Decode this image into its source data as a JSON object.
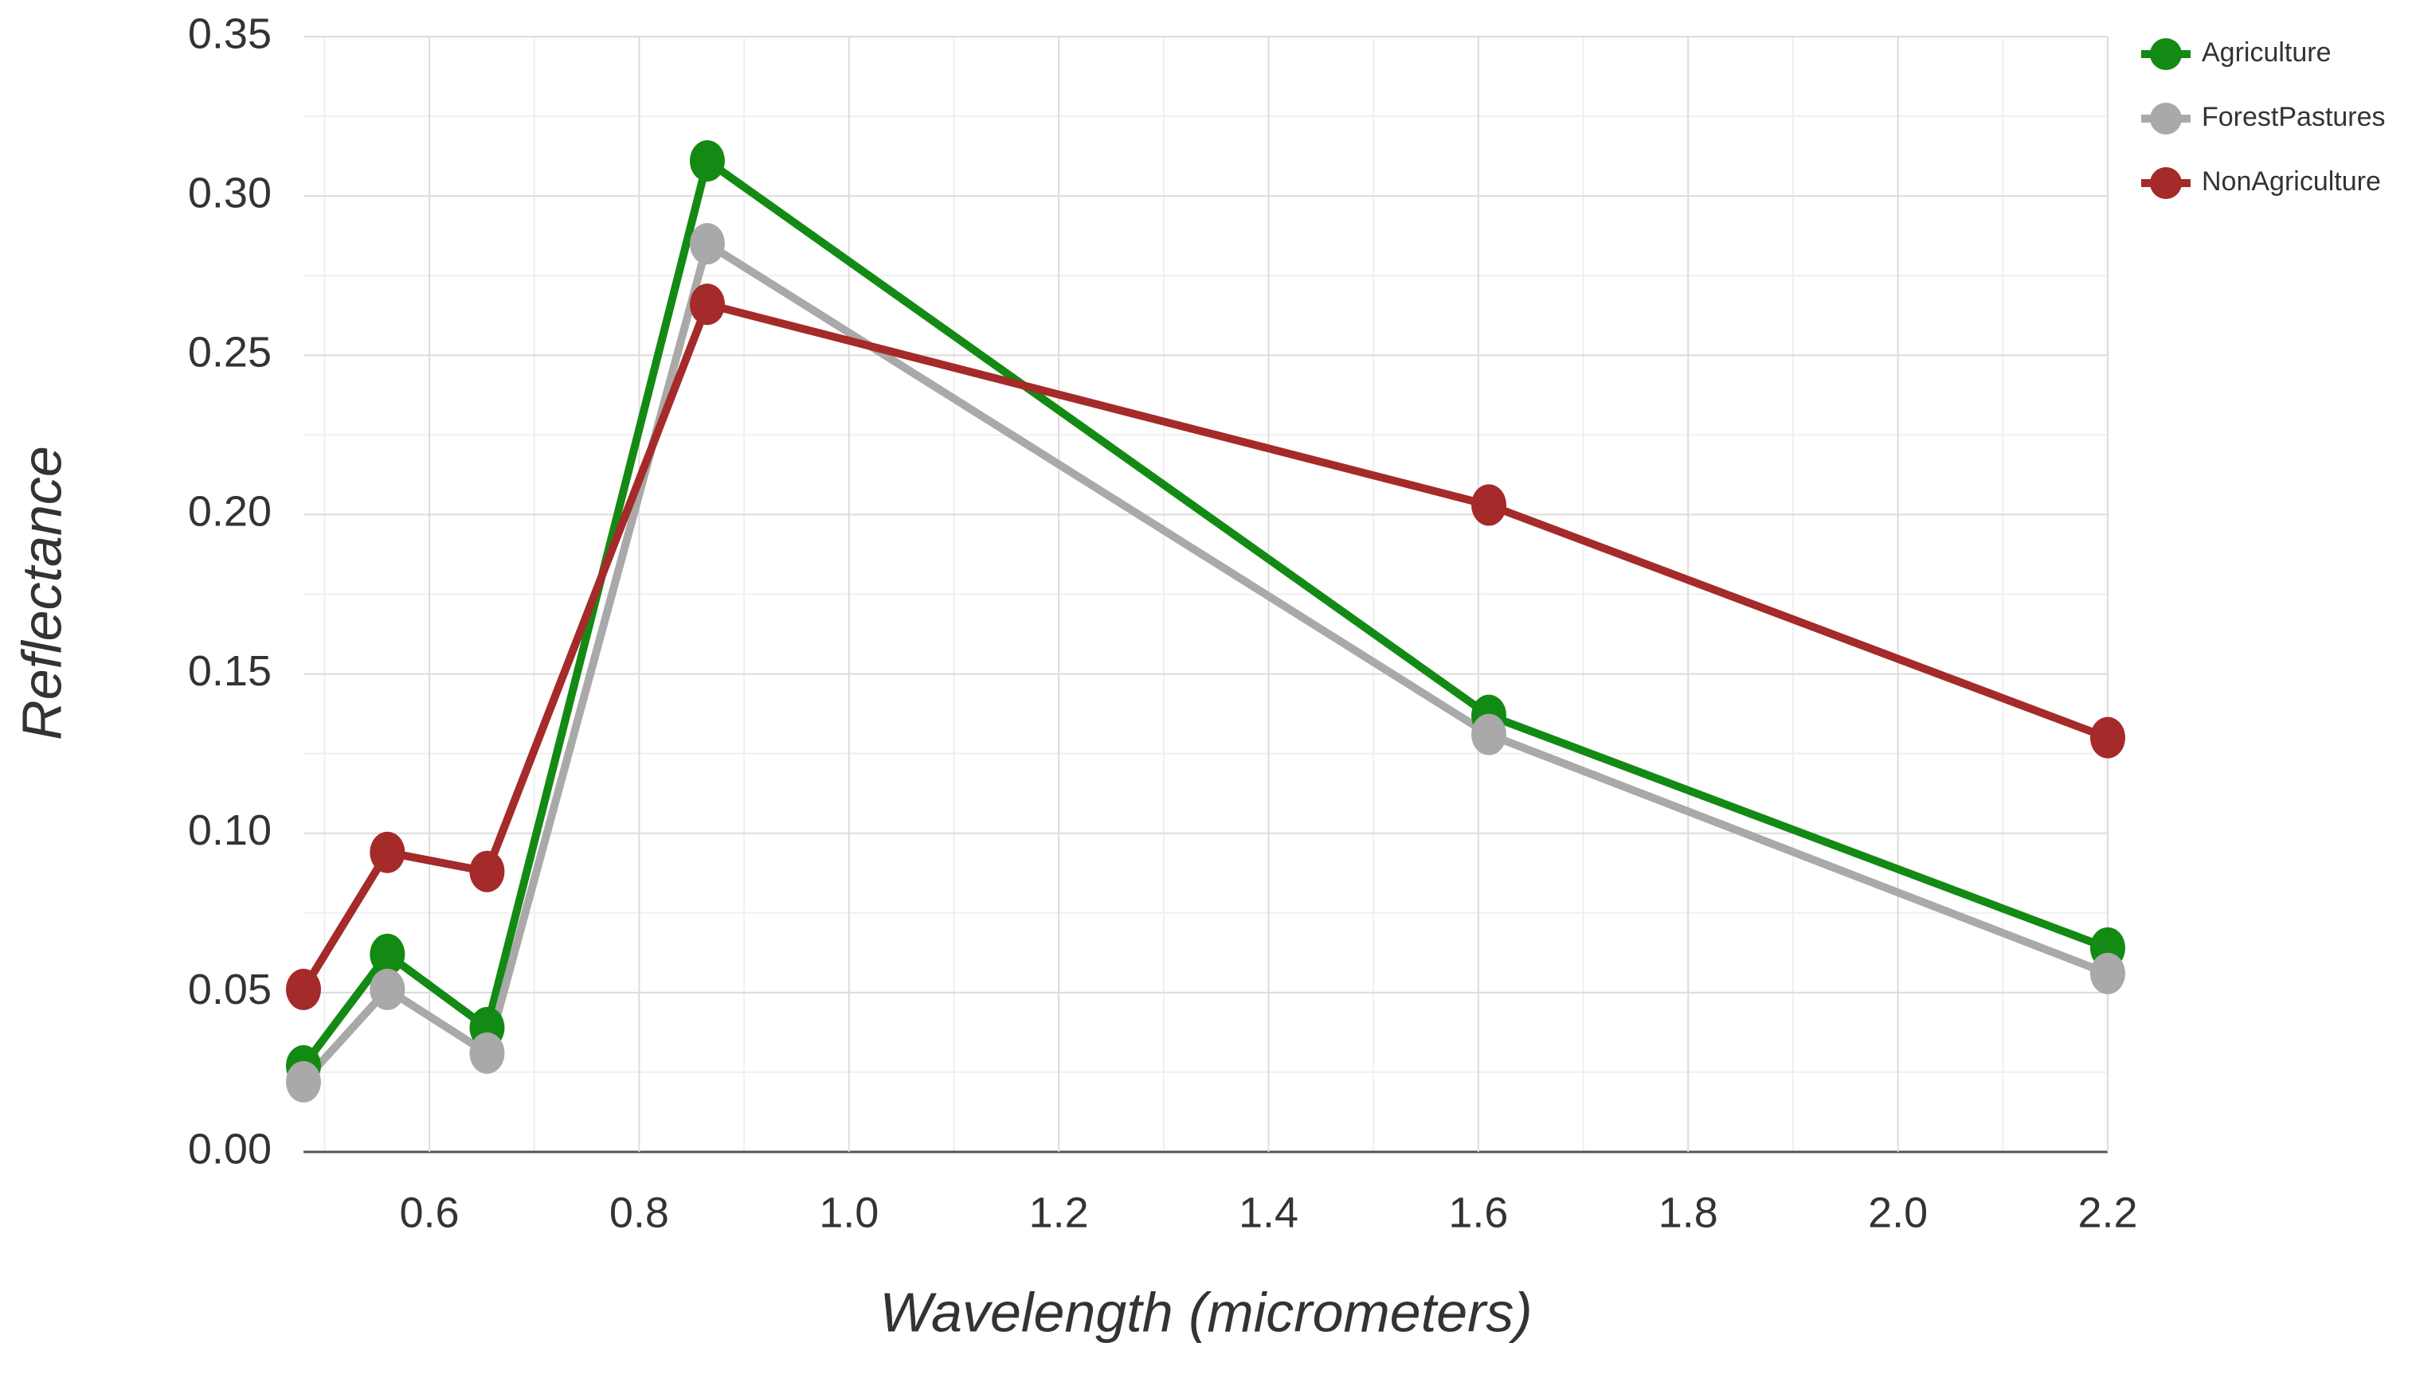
{
  "chart_data": {
    "type": "line",
    "x_label": "Wavelength (micrometers)",
    "y_label": "Reflectance",
    "x": [
      0.48,
      0.56,
      0.655,
      0.865,
      1.61,
      2.2
    ],
    "series": [
      {
        "name": "Agriculture",
        "color": "#138a13",
        "values": [
          0.027,
          0.062,
          0.039,
          0.311,
          0.137,
          0.064
        ]
      },
      {
        "name": "ForestPastures",
        "color": "#a9a9a9",
        "values": [
          0.022,
          0.051,
          0.031,
          0.285,
          0.131,
          0.056
        ]
      },
      {
        "name": "NonAgriculture",
        "color": "#a52a2a",
        "values": [
          0.051,
          0.094,
          0.088,
          0.266,
          0.203,
          0.13
        ]
      }
    ],
    "xlim": [
      0.48,
      2.2
    ],
    "ylim": [
      0,
      0.35
    ],
    "xticks": [
      0.6,
      0.8,
      {
        "value": 1,
        "label": "1.0"
      },
      1.2,
      1.4,
      1.6,
      1.8,
      {
        "value": 2,
        "label": "2.0"
      },
      2.2
    ],
    "yticks": [
      {
        "value": 0,
        "label": "0.00"
      },
      0.05,
      {
        "value": 0.1,
        "label": "0.10"
      },
      0.15,
      {
        "value": 0.2,
        "label": "0.20"
      },
      0.25,
      {
        "value": 0.3,
        "label": "0.30"
      },
      0.35
    ],
    "grid": true,
    "legend": "right"
  }
}
